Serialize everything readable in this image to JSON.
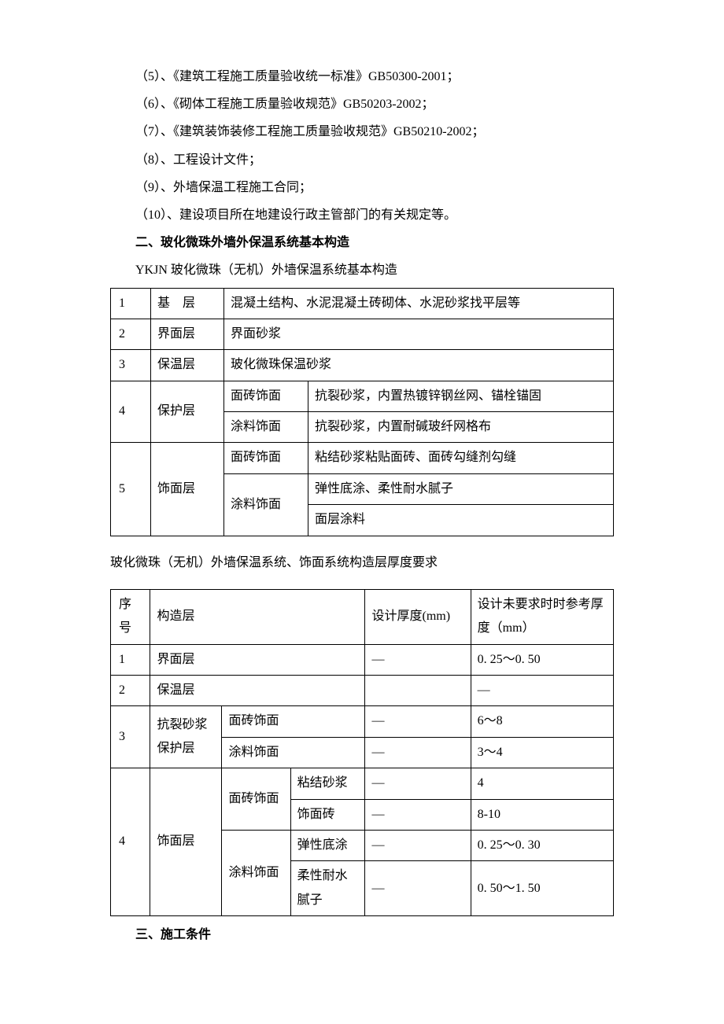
{
  "paras": {
    "p5": "（5）、《建筑工程施工质量验收统一标准》GB50300-2001；",
    "p6": "（6）、《砌体工程施工质量验收规范》GB50203-2002；",
    "p7": "（7）、《建筑装饰装修工程施工质量验收规范》GB50210-2002；",
    "p8": "（8）、工程设计文件；",
    "p9": "（9）、外墙保温工程施工合同；",
    "p10": "（10）、建设项目所在地建设行政主管部门的有关规定等。",
    "h2": "二、玻化微珠外墙外保温系统基本构造",
    "cap1": "YKJN 玻化微珠（无机）外墙保温系统基本构造",
    "cap2": "玻化微珠（无机）外墙保温系统、饰面系统构造层厚度要求",
    "h3": "三、施工条件"
  },
  "t1": {
    "r1": {
      "n": "1",
      "layer": "基　层",
      "desc": "混凝土结构、水泥混凝土砖砌体、水泥砂浆找平层等"
    },
    "r2": {
      "n": "2",
      "layer": "界面层",
      "desc": "界面砂浆"
    },
    "r3": {
      "n": "3",
      "layer": "保温层",
      "desc": "玻化微珠保温砂浆"
    },
    "r4": {
      "n": "4",
      "layer": "保护层",
      "a_sub": "面砖饰面",
      "a_desc": "抗裂砂浆，内置热镀锌钢丝网、锚栓锚固",
      "b_sub": "涂料饰面",
      "b_desc": "抗裂砂浆，内置耐碱玻纤网格布"
    },
    "r5": {
      "n": "5",
      "layer": "饰面层",
      "a_sub": "面砖饰面",
      "a_desc": "粘结砂浆粘贴面砖、面砖勾缝剂勾缝",
      "b_sub": "涂料饰面",
      "b_desc": "弹性底涂、柔性耐水腻子",
      "c_desc": "面层涂料"
    }
  },
  "t2": {
    "head": {
      "num": "序号",
      "layer": "构造层",
      "design": "设计厚度(mm)",
      "ref": "设计未要求时时参考厚度（mm）"
    },
    "r1": {
      "n": "1",
      "layer": "界面层",
      "design": "—",
      "ref": "0. 25～0. 50"
    },
    "r2": {
      "n": "2",
      "layer": "保温层",
      "design": "",
      "ref": "—"
    },
    "r3": {
      "n": "3",
      "layer": "抗裂砂浆保护层",
      "a_sub": "面砖饰面",
      "a_design": "—",
      "a_ref": "6～8",
      "b_sub": "涂料饰面",
      "b_design": "—",
      "b_ref": "3～4"
    },
    "r4": {
      "n": "4",
      "layer": "饰面层",
      "a_sub": "面砖饰面",
      "a1_sub2": "粘结砂浆",
      "a1_design": "—",
      "a1_ref": "4",
      "a2_sub2": "饰面砖",
      "a2_design": "—",
      "a2_ref": "8-10",
      "b_sub": "涂料饰面",
      "b1_sub2": "弹性底涂",
      "b1_design": "—",
      "b1_ref": "0. 25～0. 30",
      "b2_sub2": "柔性耐水腻子",
      "b2_design": "—",
      "b2_ref": "0.  50～1. 50"
    }
  }
}
